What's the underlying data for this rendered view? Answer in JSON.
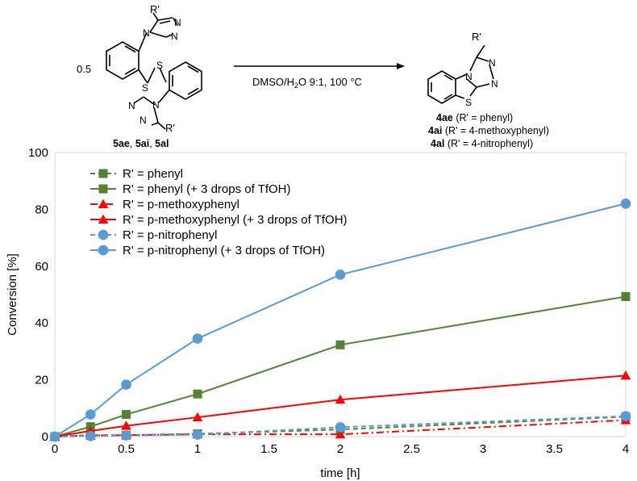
{
  "scheme": {
    "stoich": "0.5",
    "reactant_substituent_top": "R'",
    "reactant_substituent_bottom": "R'",
    "product_substituent": "R'",
    "atoms": {
      "N": "N",
      "S": "S"
    },
    "reagents_prefix": "DMSO/H",
    "reagents_sub": "2",
    "reagents_suffix": "O 9:1, 100 °C",
    "reactants": [
      {
        "code": "5ae",
        "sep": ", "
      },
      {
        "code": "5ai",
        "sep": ", "
      },
      {
        "code": "5al",
        "sep": ""
      }
    ],
    "products": [
      {
        "code": "4ae",
        "desc": " (R' = phenyl)"
      },
      {
        "code": "4ai",
        "desc": " (R' = 4-methoxyphenyl)"
      },
      {
        "code": "4al",
        "desc": " (R' = 4-nitrophenyl)"
      }
    ]
  },
  "chart_data": {
    "type": "line",
    "xlabel": "time [h]",
    "ylabel": "Conversion [%]",
    "xlim": [
      0,
      4
    ],
    "ylim": [
      0,
      100
    ],
    "xticks": [
      0,
      0.5,
      1,
      1.5,
      2,
      2.5,
      3,
      3.5,
      4
    ],
    "xtick_labels": [
      "0",
      "0.5",
      "1",
      "1.5",
      "2",
      "2.5",
      "3",
      "3.5",
      "4"
    ],
    "yticks": [
      0,
      20,
      40,
      60,
      80,
      100
    ],
    "ytick_labels": [
      "0",
      "20",
      "40",
      "60",
      "80",
      "100"
    ],
    "grid": false,
    "legend_position": "top-left",
    "series": [
      {
        "name": "R' = phenyl",
        "color": "#548235",
        "marker": "square",
        "dash": "dashed",
        "x": [
          0,
          0.25,
          0.5,
          1,
          2,
          4
        ],
        "y": [
          0,
          0.5,
          0.5,
          1.0,
          2.5,
          7.0
        ]
      },
      {
        "name": "R' = phenyl (+ 3 drops of TfOH)",
        "color": "#548235",
        "marker": "square",
        "dash": "solid",
        "x": [
          0,
          0.25,
          0.5,
          1,
          2,
          4
        ],
        "y": [
          0,
          3.5,
          7.8,
          15.0,
          32.3,
          49.3
        ]
      },
      {
        "name": "R' = p-methoxyphenyl",
        "color": "#ff0000",
        "marker": "triangle",
        "dash": "dashdot",
        "x": [
          0,
          0.25,
          0.5,
          1,
          2,
          4
        ],
        "y": [
          0,
          0.4,
          0.5,
          0.8,
          0.8,
          5.8
        ]
      },
      {
        "name": "R' = p-methoxyphenyl (+ 3 drops of TfOH)",
        "color": "#ff0000",
        "marker": "triangle",
        "dash": "solid",
        "x": [
          0,
          0.25,
          0.5,
          1,
          2,
          4
        ],
        "y": [
          0,
          2.0,
          3.8,
          6.8,
          13.0,
          21.5
        ]
      },
      {
        "name": "R' = p-nitrophenyl",
        "color": "#5b9bd5",
        "marker": "circle",
        "dash": "dashed",
        "x": [
          0,
          0.25,
          0.5,
          1,
          2,
          4
        ],
        "y": [
          0,
          0.2,
          0.4,
          0.7,
          3.3,
          7.2
        ]
      },
      {
        "name": "R' = p-nitrophenyl (+ 3 drops of TfOH)",
        "color": "#5b9bd5",
        "marker": "circle",
        "dash": "solid",
        "x": [
          0,
          0.25,
          0.5,
          1,
          2,
          4
        ],
        "y": [
          0,
          7.8,
          18.3,
          34.5,
          57.0,
          82.0
        ]
      }
    ]
  }
}
